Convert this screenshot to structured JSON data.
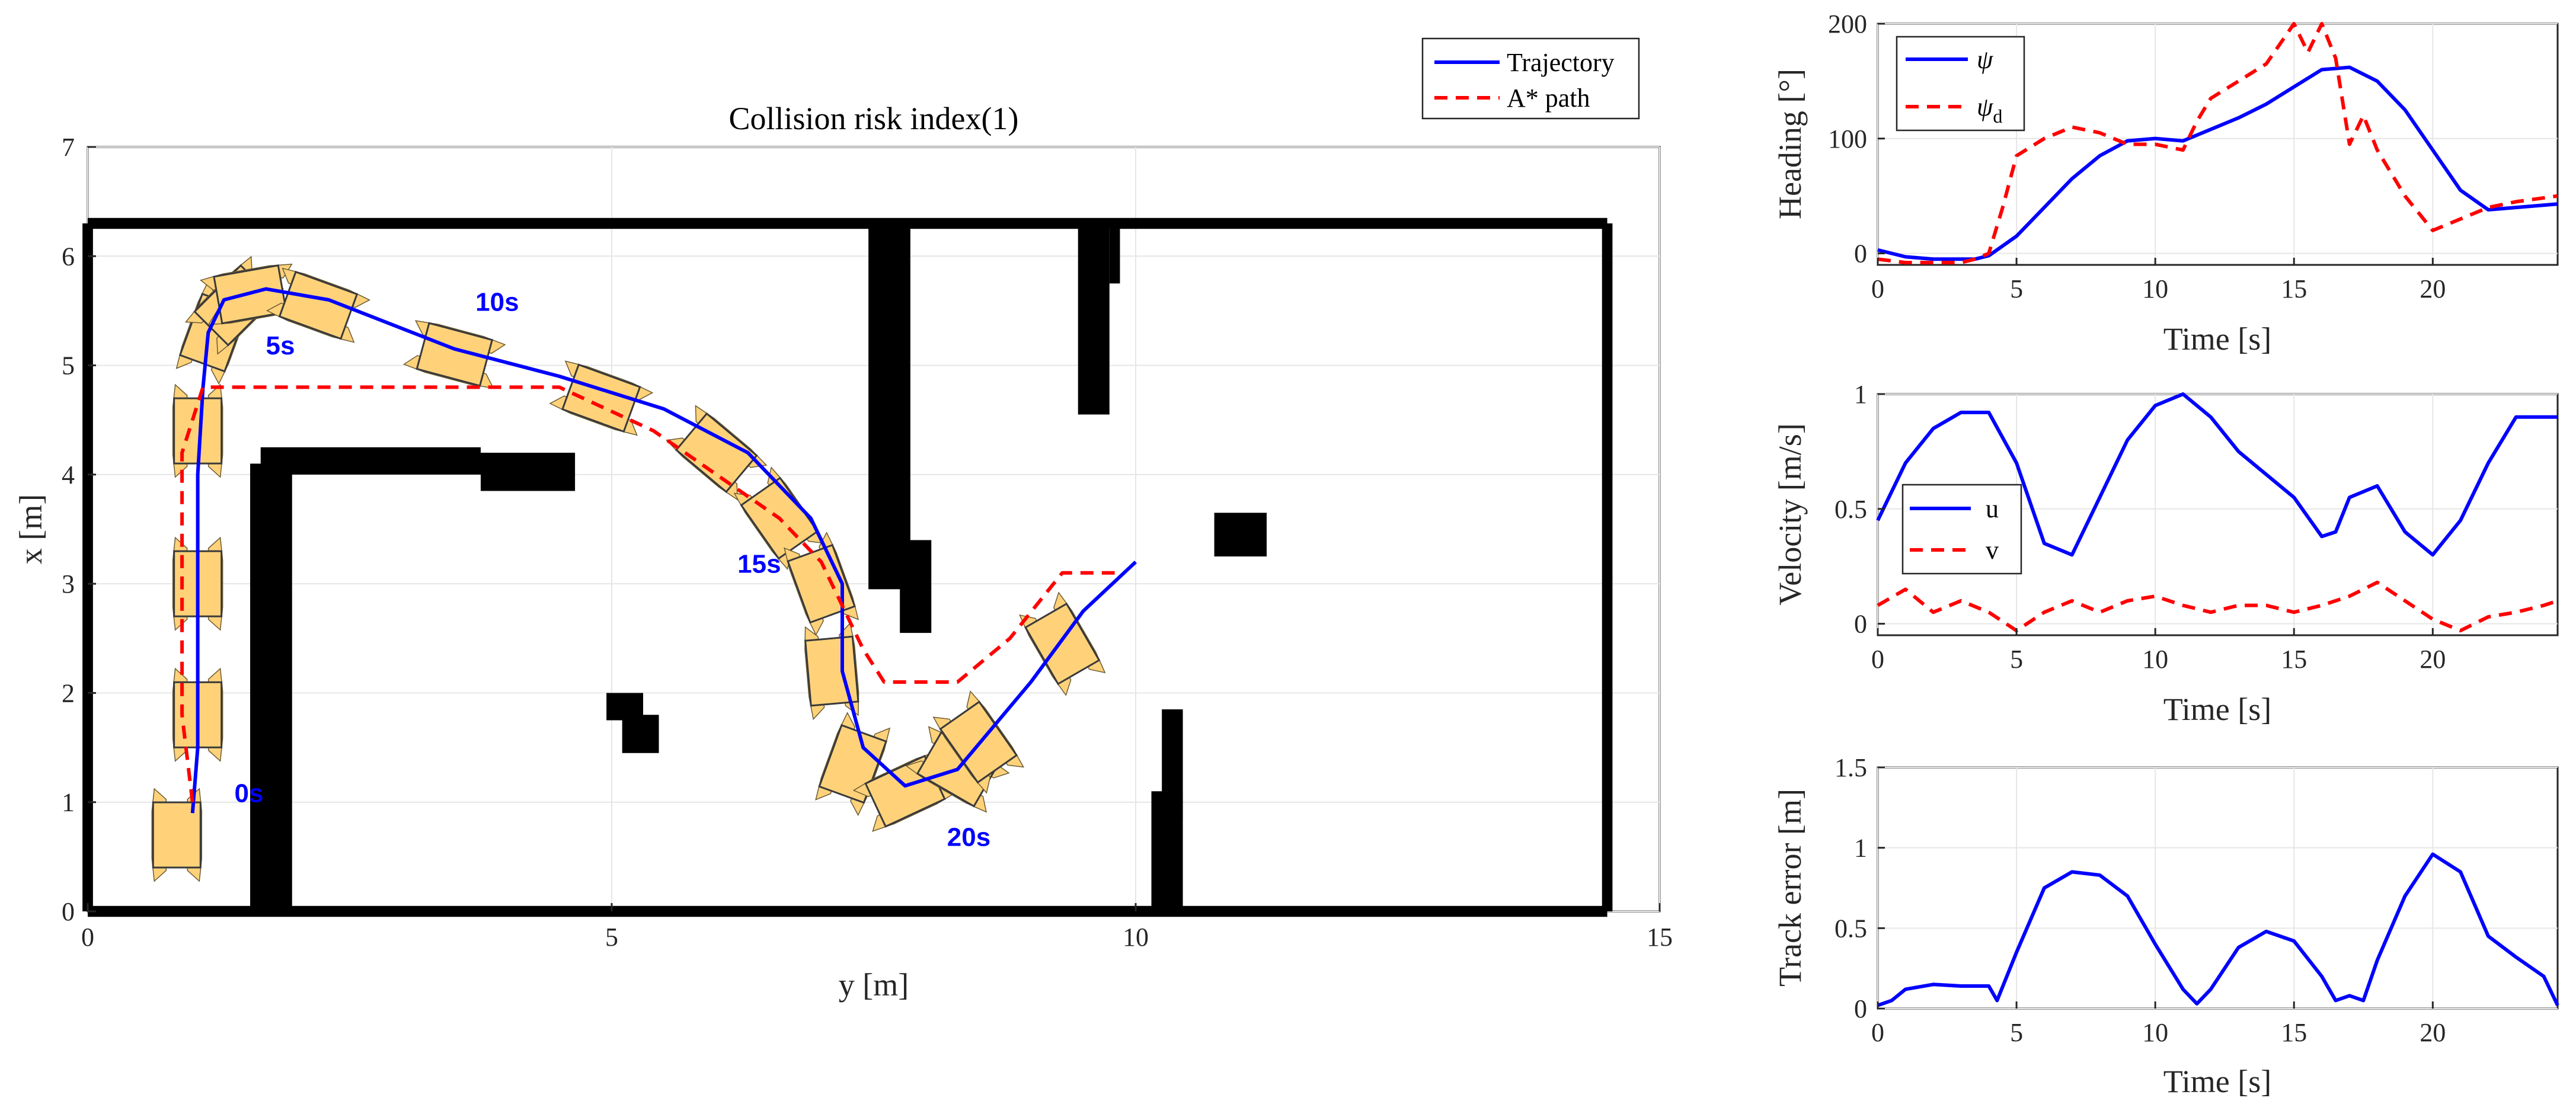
{
  "chart_data": [
    {
      "type": "line",
      "title": "Collision risk index(1)",
      "xlabel": "y [m]",
      "ylabel": "x [m]",
      "xlim": [
        0,
        15
      ],
      "ylim": [
        0,
        7
      ],
      "xticks": [
        "0",
        "5",
        "10",
        "15"
      ],
      "yticks": [
        "0",
        "1",
        "2",
        "3",
        "4",
        "5",
        "6",
        "7"
      ],
      "grid": true,
      "legend_position": "top-right (outside)",
      "colors": {
        "trajectory": "#0000ff",
        "astar": "#ff0000",
        "obstacle": "#000000",
        "vessel": "#ffd27a"
      },
      "series": [
        {
          "name": "Trajectory",
          "style": "solid",
          "points": [
            [
              1.0,
              0.9
            ],
            [
              1.05,
              1.5
            ],
            [
              1.05,
              2.3
            ],
            [
              1.05,
              3.2
            ],
            [
              1.05,
              4.0
            ],
            [
              1.1,
              4.8
            ],
            [
              1.15,
              5.3
            ],
            [
              1.3,
              5.6
            ],
            [
              1.7,
              5.7
            ],
            [
              2.3,
              5.6
            ],
            [
              3.5,
              5.15
            ],
            [
              4.5,
              4.9
            ],
            [
              5.5,
              4.6
            ],
            [
              6.3,
              4.2
            ],
            [
              6.9,
              3.6
            ],
            [
              7.2,
              3.0
            ],
            [
              7.2,
              2.2
            ],
            [
              7.4,
              1.5
            ],
            [
              7.8,
              1.15
            ],
            [
              8.3,
              1.3
            ],
            [
              9.0,
              2.1
            ],
            [
              9.5,
              2.75
            ],
            [
              10.0,
              3.2
            ]
          ]
        },
        {
          "name": "A* path",
          "style": "dashed",
          "points": [
            [
              1.0,
              1.0
            ],
            [
              0.9,
              1.8
            ],
            [
              0.9,
              3.0
            ],
            [
              0.9,
              4.2
            ],
            [
              1.1,
              4.8
            ],
            [
              4.5,
              4.8
            ],
            [
              5.4,
              4.4
            ],
            [
              6.0,
              4.0
            ],
            [
              6.6,
              3.6
            ],
            [
              7.0,
              3.2
            ],
            [
              7.4,
              2.4
            ],
            [
              7.6,
              2.1
            ],
            [
              8.3,
              2.1
            ],
            [
              8.8,
              2.5
            ],
            [
              9.3,
              3.1
            ],
            [
              9.8,
              3.1
            ]
          ]
        }
      ],
      "time_labels": [
        {
          "label": "0s",
          "y": 1.4,
          "x": 1.0
        },
        {
          "label": "5s",
          "y": 1.7,
          "x": 5.1
        },
        {
          "label": "10s",
          "y": 3.7,
          "x": 5.5
        },
        {
          "label": "15s",
          "y": 6.2,
          "x": 3.1
        },
        {
          "label": "20s",
          "y": 8.2,
          "x": 0.6
        }
      ],
      "vessels": [
        {
          "y": 0.85,
          "x": 0.7,
          "heading_deg": 0
        },
        {
          "y": 1.05,
          "x": 1.8,
          "heading_deg": 0
        },
        {
          "y": 1.05,
          "x": 3.0,
          "heading_deg": 0
        },
        {
          "y": 1.05,
          "x": 4.4,
          "heading_deg": 0
        },
        {
          "y": 1.2,
          "x": 5.3,
          "heading_deg": 20
        },
        {
          "y": 1.4,
          "x": 5.55,
          "heading_deg": 45
        },
        {
          "y": 1.55,
          "x": 5.65,
          "heading_deg": 80
        },
        {
          "y": 2.2,
          "x": 5.55,
          "heading_deg": 110
        },
        {
          "y": 3.5,
          "x": 5.1,
          "heading_deg": 105
        },
        {
          "y": 4.9,
          "x": 4.7,
          "heading_deg": 110
        },
        {
          "y": 6.0,
          "x": 4.2,
          "heading_deg": 130
        },
        {
          "y": 6.6,
          "x": 3.6,
          "heading_deg": 145
        },
        {
          "y": 7.0,
          "x": 3.0,
          "heading_deg": 160
        },
        {
          "y": 7.1,
          "x": 2.2,
          "heading_deg": 175
        },
        {
          "y": 7.3,
          "x": 1.35,
          "heading_deg": 200
        },
        {
          "y": 7.8,
          "x": 1.1,
          "heading_deg": 245
        },
        {
          "y": 8.3,
          "x": 1.3,
          "heading_deg": 300
        },
        {
          "y": 8.5,
          "x": 1.55,
          "heading_deg": 325
        },
        {
          "y": 9.3,
          "x": 2.45,
          "heading_deg": 330
        }
      ],
      "obstacles": [
        {
          "y0": 0,
          "y1": 14.5,
          "x0": 6.25,
          "x1": 6.35
        },
        {
          "y0": 0,
          "y1": 14.5,
          "x0": -0.05,
          "x1": 0.05
        },
        {
          "y0": -0.05,
          "y1": 0.05,
          "x0": 0,
          "x1": 6.3
        },
        {
          "y0": 14.45,
          "y1": 14.55,
          "x0": 0,
          "x1": 6.3
        },
        {
          "y0": 1.55,
          "y1": 1.95,
          "x0": 0,
          "x1": 4.1
        },
        {
          "y0": 1.65,
          "y1": 3.75,
          "x0": 4.0,
          "x1": 4.25
        },
        {
          "y0": 3.75,
          "y1": 4.65,
          "x0": 3.85,
          "x1": 4.2
        },
        {
          "y0": 7.45,
          "y1": 7.85,
          "x0": 2.95,
          "x1": 6.3
        },
        {
          "y0": 7.75,
          "y1": 8.05,
          "x0": 2.55,
          "x1": 3.4
        },
        {
          "y0": 9.45,
          "y1": 9.75,
          "x0": 4.55,
          "x1": 6.3
        },
        {
          "y0": 9.75,
          "y1": 9.85,
          "x0": 5.75,
          "x1": 6.3
        },
        {
          "y0": 10.15,
          "y1": 10.45,
          "x0": 0,
          "x1": 1.1
        },
        {
          "y0": 10.25,
          "y1": 10.45,
          "x0": 0.85,
          "x1": 1.85
        },
        {
          "y0": 10.75,
          "y1": 11.25,
          "x0": 3.25,
          "x1": 3.65
        },
        {
          "y0": 4.95,
          "y1": 5.3,
          "x0": 1.75,
          "x1": 2.0
        },
        {
          "y0": 5.1,
          "y1": 5.45,
          "x0": 1.45,
          "x1": 1.8
        }
      ]
    },
    {
      "type": "line",
      "xlabel": "Time [s]",
      "ylabel": "Heading [°]",
      "xlim": [
        0,
        24.5
      ],
      "ylim": [
        -10,
        200
      ],
      "xticks": [
        "0",
        "5",
        "10",
        "15",
        "20"
      ],
      "yticks": [
        "0",
        "100",
        "200"
      ],
      "grid": true,
      "legend_position": "top-left",
      "series": [
        {
          "name": "ψ",
          "subscript": "",
          "style": "solid",
          "color": "#0000ff",
          "x": [
            0,
            1,
            2,
            3,
            3.5,
            4,
            5,
            6,
            7,
            8,
            9,
            10,
            11,
            12,
            13,
            14,
            15,
            16,
            17,
            18,
            19,
            20,
            21,
            22,
            23,
            24.5
          ],
          "values": [
            3,
            -3,
            -5,
            -5,
            -5,
            -2,
            15,
            40,
            65,
            85,
            98,
            100,
            98,
            108,
            118,
            130,
            145,
            160,
            162,
            150,
            125,
            90,
            55,
            38,
            40,
            43
          ]
        },
        {
          "name": "ψ",
          "subscript": "d",
          "style": "dashed",
          "color": "#ff0000",
          "x": [
            0,
            1,
            2,
            3,
            3.5,
            4,
            4.5,
            5,
            6,
            7,
            8,
            9,
            10,
            11,
            11.5,
            12,
            13,
            14,
            15,
            15.5,
            16,
            16.5,
            17,
            17.5,
            18,
            19,
            20,
            21,
            22,
            23,
            24.5
          ],
          "values": [
            -5,
            -8,
            -8,
            -8,
            -5,
            0,
            40,
            85,
            100,
            110,
            105,
            95,
            95,
            90,
            115,
            135,
            150,
            165,
            200,
            175,
            200,
            170,
            95,
            120,
            90,
            50,
            20,
            30,
            40,
            45,
            50
          ]
        }
      ]
    },
    {
      "type": "line",
      "xlabel": "Time [s]",
      "ylabel": "Velocity [m/s]",
      "xlim": [
        0,
        24.5
      ],
      "ylim": [
        -0.05,
        1.0
      ],
      "xticks": [
        "0",
        "5",
        "10",
        "15",
        "20"
      ],
      "yticks": [
        "0",
        "0.5",
        "1"
      ],
      "grid": true,
      "legend_position": "middle-left",
      "series": [
        {
          "name": "u",
          "style": "solid",
          "color": "#0000ff",
          "x": [
            0,
            1,
            2,
            3,
            4,
            5,
            6,
            7,
            8,
            9,
            10,
            11,
            12,
            13,
            14,
            15,
            16,
            16.5,
            17,
            18,
            19,
            20,
            21,
            22,
            23,
            24,
            24.5
          ],
          "values": [
            0.45,
            0.7,
            0.85,
            0.92,
            0.92,
            0.7,
            0.35,
            0.3,
            0.55,
            0.8,
            0.95,
            1.0,
            0.9,
            0.75,
            0.65,
            0.55,
            0.38,
            0.4,
            0.55,
            0.6,
            0.4,
            0.3,
            0.45,
            0.7,
            0.9,
            0.9,
            0.9
          ]
        },
        {
          "name": "v",
          "style": "dashed",
          "color": "#ff0000",
          "x": [
            0,
            1,
            2,
            3,
            4,
            5,
            6,
            7,
            8,
            9,
            10,
            11,
            12,
            13,
            14,
            15,
            16,
            17,
            18,
            19,
            20,
            21,
            22,
            23,
            24,
            24.5
          ],
          "values": [
            0.08,
            0.15,
            0.05,
            0.1,
            0.05,
            -0.03,
            0.05,
            0.1,
            0.05,
            0.1,
            0.12,
            0.08,
            0.05,
            0.08,
            0.08,
            0.05,
            0.08,
            0.12,
            0.18,
            0.1,
            0.02,
            -0.03,
            0.03,
            0.05,
            0.08,
            0.1
          ]
        }
      ]
    },
    {
      "type": "line",
      "xlabel": "Time [s]",
      "ylabel": "Track error [m]",
      "xlim": [
        0,
        24.5
      ],
      "ylim": [
        0,
        1.5
      ],
      "xticks": [
        "0",
        "5",
        "10",
        "15",
        "20"
      ],
      "yticks": [
        "0",
        "0.5",
        "1",
        "1.5"
      ],
      "grid": true,
      "series": [
        {
          "name": "",
          "style": "solid",
          "color": "#0000ff",
          "x": [
            0,
            0.5,
            1,
            2,
            3,
            4,
            4.3,
            5,
            6,
            7,
            8,
            9,
            10,
            11,
            11.5,
            12,
            13,
            14,
            15,
            16,
            16.5,
            17,
            17.5,
            18,
            19,
            20,
            21,
            22,
            23,
            24,
            24.5
          ],
          "values": [
            0.02,
            0.05,
            0.12,
            0.15,
            0.14,
            0.14,
            0.05,
            0.35,
            0.75,
            0.85,
            0.83,
            0.7,
            0.4,
            0.12,
            0.03,
            0.12,
            0.38,
            0.48,
            0.42,
            0.2,
            0.05,
            0.08,
            0.05,
            0.3,
            0.7,
            0.96,
            0.85,
            0.45,
            0.32,
            0.2,
            0.02
          ]
        }
      ]
    }
  ]
}
